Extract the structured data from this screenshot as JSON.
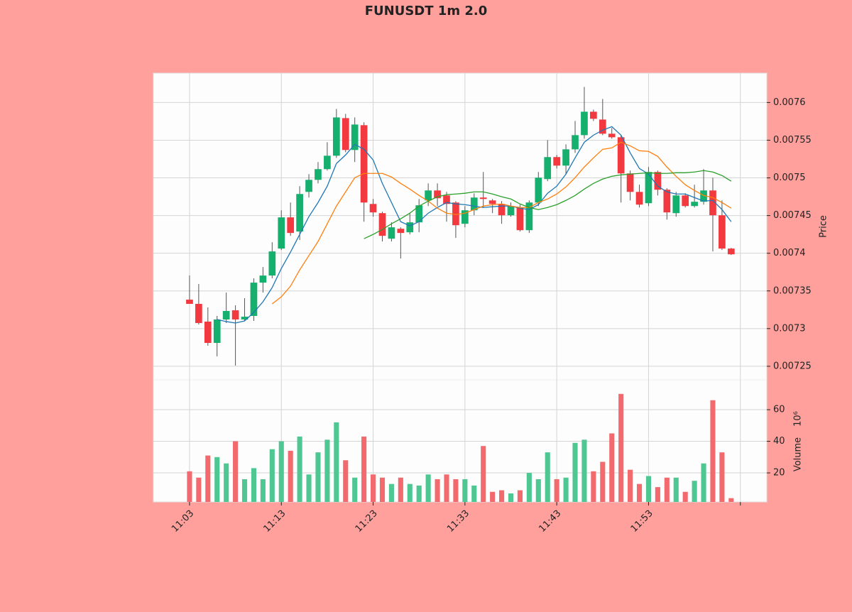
{
  "chart_data": {
    "type": "candlestick",
    "title": "FUNUSDT 1m 2.0",
    "categories": [
      "11:03",
      null,
      null,
      null,
      null,
      null,
      null,
      null,
      null,
      null,
      "11:13",
      null,
      null,
      null,
      null,
      null,
      null,
      null,
      null,
      null,
      "11:23",
      null,
      null,
      null,
      null,
      null,
      null,
      null,
      null,
      null,
      "11:33",
      null,
      null,
      null,
      null,
      null,
      null,
      null,
      null,
      null,
      "11:43",
      null,
      null,
      null,
      null,
      null,
      null,
      null,
      null,
      null,
      "11:53",
      null,
      null,
      null,
      null,
      null,
      null,
      null,
      null,
      null
    ],
    "xticks": [
      0,
      10,
      20,
      30,
      40,
      50,
      60
    ],
    "xlim": [
      -3.94,
      62.88
    ],
    "open": [
      0.0073384,
      0.0073328,
      0.0073093,
      0.007281,
      0.0073121,
      0.0073243,
      0.0073121,
      0.0073168,
      0.007361,
      0.0073704,
      0.0074062,
      0.0074476,
      0.0074288,
      0.0074814,
      0.0074974,
      0.0075116,
      0.0075294,
      0.0075793,
      0.007537,
      0.0075699,
      0.0074654,
      0.0074532,
      0.0074193,
      0.0074325,
      0.0074278,
      0.007441,
      0.0074701,
      0.0074833,
      0.0074767,
      0.0074673,
      0.0074391,
      0.007457,
      0.0074739,
      0.0074701,
      0.0074654,
      0.0074504,
      0.0074607,
      0.0074306,
      0.0074673,
      0.0074984,
      0.0075276,
      0.0075163,
      0.0075379,
      0.0075567,
      0.0075878,
      0.0075774,
      0.0075586,
      0.0075539,
      0.0075059,
      0.0074814,
      0.0074664,
      0.0075078,
      0.0074843,
      0.0074532,
      0.0074767,
      0.0074626,
      0.0074683,
      0.0074833,
      0.0074504,
      0.0074062
    ],
    "high": [
      0.0073704,
      0.0073591,
      0.0073281,
      0.0073168,
      0.0073478,
      0.0073309,
      0.0073403,
      0.0073667,
      0.0073817,
      0.0074146,
      0.007457,
      0.0074673,
      0.007489,
      0.007505,
      0.007521,
      0.0075473,
      0.0075915,
      0.0075849,
      0.0075802,
      0.0075737,
      0.007472,
      0.0074551,
      0.007441,
      0.0074344,
      0.0074532,
      0.007472,
      0.0074927,
      0.0074927,
      0.0074814,
      0.0074692,
      0.0074626,
      0.0074795,
      0.0075078,
      0.007472,
      0.0074692,
      0.0074673,
      0.0074645,
      0.0074701,
      0.0075078,
      0.0075501,
      0.0075304,
      0.0075445,
      0.0075755,
      0.0076207,
      0.0075906,
      0.0076047,
      0.0075661,
      0.0075567,
      0.0075097,
      0.0074909,
      0.0075144,
      0.0075097,
      0.0074862,
      0.0074814,
      0.0074795,
      0.0074909,
      0.0075116,
      0.0075003,
      0.0074701,
      0.0074071
    ],
    "low": [
      0.0073328,
      0.0073055,
      0.0072773,
      0.0072632,
      0.0073074,
      0.0072509,
      0.0073102,
      0.0073102,
      0.0073478,
      0.0073667,
      0.0074043,
      0.0074231,
      0.0074175,
      0.0074739,
      0.0074927,
      0.0075097,
      0.0075266,
      0.0075341,
      0.007521,
      0.0074419,
      0.0074485,
      0.0074156,
      0.0074156,
      0.007393,
      0.007425,
      0.0074278,
      0.0074626,
      0.0074626,
      0.0074419,
      0.0074203,
      0.0074344,
      0.0074504,
      0.0074607,
      0.0074532,
      0.0074391,
      0.0074485,
      0.0074288,
      0.0074269,
      0.0074626,
      0.0074956,
      0.0075125,
      0.007505,
      0.0075332,
      0.007552,
      0.0075755,
      0.0075567,
      0.007552,
      0.0074673,
      0.0074701,
      0.0074607,
      0.0074626,
      0.0074767,
      0.0074447,
      0.0074485,
      0.0074607,
      0.0074607,
      0.0074645,
      0.0074024,
      0.0074043,
      0.0073977
    ],
    "close": [
      0.0073328,
      0.0073074,
      0.007281,
      0.0073121,
      0.0073234,
      0.0073121,
      0.0073158,
      0.007361,
      0.0073704,
      0.0074024,
      0.0074476,
      0.0074269,
      0.0074786,
      0.0074974,
      0.0075116,
      0.0075294,
      0.0075802,
      0.007537,
      0.0075708,
      0.0074673,
      0.0074542,
      0.0074231,
      0.0074344,
      0.0074269,
      0.007441,
      0.0074636,
      0.0074833,
      0.007473,
      0.0074654,
      0.0074372,
      0.007457,
      0.0074739,
      0.007472,
      0.0074654,
      0.0074504,
      0.0074626,
      0.0074306,
      0.0074673,
      0.0075003,
      0.0075276,
      0.0075163,
      0.0075379,
      0.0075567,
      0.0075878,
      0.0075784,
      0.0075586,
      0.0075539,
      0.0075059,
      0.0074814,
      0.0074645,
      0.0075078,
      0.0074843,
      0.0074542,
      0.0074767,
      0.0074626,
      0.0074683,
      0.0074833,
      0.0074504,
      0.0074062,
      0.0073986
    ],
    "volume": [
      21,
      17,
      31,
      30,
      26,
      40,
      16,
      23,
      16,
      35,
      40,
      34,
      43,
      19,
      33,
      41,
      52,
      28,
      17,
      43,
      19,
      17,
      13,
      17,
      13,
      12,
      19,
      16,
      19,
      16,
      16,
      12,
      37,
      8,
      9,
      7,
      9,
      20,
      16,
      33,
      16,
      17,
      39,
      41,
      21,
      27,
      45,
      70,
      22,
      13,
      18,
      11,
      17,
      17,
      8,
      15,
      26,
      66,
      33,
      4
    ],
    "up_color": "#16b06e",
    "down_color": "#f2393f",
    "volume_up_color": "#4fc793",
    "volume_down_color": "#f26a6e",
    "series": [
      {
        "color": "#1f77b4",
        "values": [
          null,
          null,
          null,
          0.0073121,
          0.0073093,
          0.0073074,
          0.0073102,
          0.0073215,
          0.0073356,
          0.0073544,
          0.0073798,
          0.0074015,
          0.007425,
          0.0074485,
          0.0074673,
          0.007489,
          0.0075191,
          0.0075304,
          0.0075445,
          0.0075379,
          0.0075238,
          0.0074927,
          0.0074673,
          0.0074419,
          0.0074363,
          0.0074419,
          0.0074532,
          0.0074607,
          0.0074673,
          0.0074654,
          0.0074645,
          0.0074626,
          0.0074607,
          0.0074617,
          0.0074626,
          0.0074626,
          0.0074598,
          0.0074579,
          0.0074645,
          0.0074796,
          0.007489,
          0.007505,
          0.0075266,
          0.0075473,
          0.0075567,
          0.0075633,
          0.007568,
          0.0075567,
          0.0075332,
          0.0075125,
          0.007505,
          0.007489,
          0.0074814,
          0.0074786,
          0.0074786,
          0.0074739,
          0.0074692,
          0.0074701,
          0.0074579,
          0.0074419
        ]
      },
      {
        "color": "#ff7f0e",
        "values": [
          null,
          null,
          null,
          null,
          null,
          null,
          null,
          null,
          null,
          0.0073328,
          0.0073422,
          0.0073563,
          0.0073779,
          0.0073968,
          0.0074156,
          0.0074391,
          0.0074626,
          0.0074814,
          0.0075003,
          0.0075059,
          0.0075059,
          0.0075059,
          0.0075012,
          0.0074927,
          0.0074851,
          0.0074767,
          0.0074692,
          0.0074598,
          0.0074532,
          0.0074513,
          0.0074532,
          0.0074579,
          0.0074626,
          0.0074645,
          0.0074654,
          0.0074626,
          0.0074607,
          0.0074607,
          0.0074673,
          0.007472,
          0.0074786,
          0.007488,
          0.0075003,
          0.0075144,
          0.0075266,
          0.0075379,
          0.0075398,
          0.0075473,
          0.0075425,
          0.007536,
          0.0075351,
          0.0075285,
          0.0075144,
          0.0075021,
          0.0074909,
          0.0074833,
          0.0074767,
          0.0074739,
          0.0074673,
          0.0074598
        ]
      },
      {
        "color": "#2ca02c",
        "values": [
          null,
          null,
          null,
          null,
          null,
          null,
          null,
          null,
          null,
          null,
          null,
          null,
          null,
          null,
          null,
          null,
          null,
          null,
          null,
          0.0074193,
          0.007425,
          0.0074316,
          0.0074391,
          0.0074457,
          0.0074532,
          0.0074626,
          0.0074692,
          0.0074749,
          0.0074777,
          0.0074786,
          0.0074796,
          0.0074814,
          0.0074814,
          0.0074786,
          0.0074749,
          0.007472,
          0.0074654,
          0.0074607,
          0.0074579,
          0.0074607,
          0.0074645,
          0.0074701,
          0.0074767,
          0.0074851,
          0.0074927,
          0.0074984,
          0.0075021,
          0.007504,
          0.007505,
          0.0075059,
          0.0075068,
          0.0075059,
          0.0075059,
          0.0075068,
          0.0075068,
          0.0075078,
          0.0075097,
          0.0075078,
          0.0075031,
          0.0074956
        ]
      }
    ],
    "ylim": [
      0.007232,
      0.007639
    ],
    "yticks": [
      0.00725,
      0.0073,
      0.00735,
      0.0074,
      0.00745,
      0.0075,
      0.00755,
      0.0076
    ],
    "ylabel": "Price",
    "volume_ylim": [
      1.6,
      78.9
    ],
    "volume_yticks": [
      20,
      40,
      60
    ],
    "volume_label": "Volume",
    "volume_offset": "10⁶",
    "grid": true
  }
}
